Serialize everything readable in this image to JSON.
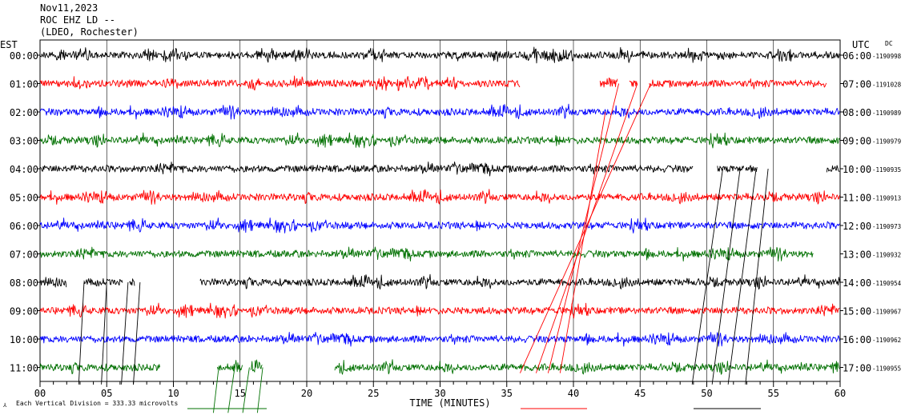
{
  "header": {
    "date": "Nov11,2023",
    "station": "ROC EHZ LD --",
    "location": "(LDEO, Rochester)"
  },
  "chart_data": {
    "type": "line",
    "title": "Nov11,2023 ROC EHZ LD -- (LDEO, Rochester)",
    "left_axis_title": "EST",
    "right_axis_title": "UTC",
    "dc_label": "DC",
    "xlabel": "TIME (MINUTES)",
    "xlim": [
      0,
      60
    ],
    "x_ticks": [
      "00",
      "05",
      "10",
      "15",
      "20",
      "25",
      "30",
      "35",
      "40",
      "45",
      "50",
      "55",
      "60"
    ],
    "grid": true,
    "scale_note": "Each Vertical Division = 333.33 microvolts",
    "trace_colors": [
      "#000000",
      "#ff0000",
      "#0000ff",
      "#007000"
    ],
    "rows": [
      {
        "est": "00:00",
        "utc": "06:00",
        "dc": "-1190998",
        "color": "#000000",
        "segments": [
          [
            0,
            60
          ]
        ]
      },
      {
        "est": "01:00",
        "utc": "07:00",
        "dc": "-1191028",
        "color": "#ff0000",
        "segments": [
          [
            0,
            36
          ],
          [
            42,
            43.3
          ],
          [
            44.2,
            44.8
          ],
          [
            45.7,
            59
          ]
        ]
      },
      {
        "est": "02:00",
        "utc": "08:00",
        "dc": "-1190989",
        "color": "#0000ff",
        "segments": [
          [
            0,
            60
          ]
        ]
      },
      {
        "est": "03:00",
        "utc": "09:00",
        "dc": "-1190979",
        "color": "#007000",
        "segments": [
          [
            0,
            60
          ]
        ]
      },
      {
        "est": "04:00",
        "utc": "10:00",
        "dc": "-1190935",
        "color": "#000000",
        "segments": [
          [
            0,
            49
          ],
          [
            50.8,
            52.8
          ],
          [
            52.9,
            53.8
          ],
          [
            59,
            60
          ]
        ]
      },
      {
        "est": "05:00",
        "utc": "11:00",
        "dc": "-1190913",
        "color": "#ff0000",
        "segments": [
          [
            0,
            60
          ]
        ]
      },
      {
        "est": "06:00",
        "utc": "12:00",
        "dc": "-1190973",
        "color": "#0000ff",
        "segments": [
          [
            0,
            60
          ]
        ]
      },
      {
        "est": "07:00",
        "utc": "13:00",
        "dc": "-1190932",
        "color": "#007000",
        "segments": [
          [
            0,
            58
          ]
        ]
      },
      {
        "est": "08:00",
        "utc": "14:00",
        "dc": "-1190954",
        "color": "#000000",
        "segments": [
          [
            0,
            2
          ],
          [
            3.3,
            6.2
          ],
          [
            6.7,
            7.1
          ],
          [
            12,
            60
          ]
        ]
      },
      {
        "est": "09:00",
        "utc": "15:00",
        "dc": "-1190967",
        "color": "#ff0000",
        "segments": [
          [
            0,
            60
          ]
        ]
      },
      {
        "est": "10:00",
        "utc": "16:00",
        "dc": "-1190962",
        "color": "#0000ff",
        "segments": [
          [
            0,
            60
          ]
        ]
      },
      {
        "est": "11:00",
        "utc": "17:00",
        "dc": "-1190955",
        "color": "#007000",
        "segments": [
          [
            0,
            9
          ],
          [
            13.3,
            15.2
          ],
          [
            15.8,
            16.7
          ],
          [
            22.1,
            60
          ]
        ]
      }
    ],
    "streaks": [
      {
        "color": "#ff0000",
        "x_start": 36.0,
        "row_start": 11.2,
        "x_end": 45.8,
        "row_end": 1.0
      },
      {
        "color": "#ff0000",
        "x_start": 37.2,
        "row_start": 11.2,
        "x_end": 44.8,
        "row_end": 1.0
      },
      {
        "color": "#ff0000",
        "x_start": 38.1,
        "row_start": 11.2,
        "x_end": 43.4,
        "row_end": 1.0
      },
      {
        "color": "#ff0000",
        "x_start": 39.0,
        "row_start": 11.2,
        "x_end": 42.4,
        "row_end": 2.0
      },
      {
        "color": "#000000",
        "x_start": 48.9,
        "row_start": 11.6,
        "x_end": 51.2,
        "row_end": 4.0
      },
      {
        "color": "#000000",
        "x_start": 50.4,
        "row_start": 11.6,
        "x_end": 52.5,
        "row_end": 4.0
      },
      {
        "color": "#000000",
        "x_start": 51.6,
        "row_start": 11.6,
        "x_end": 53.7,
        "row_end": 4.0
      },
      {
        "color": "#000000",
        "x_start": 52.9,
        "row_start": 11.6,
        "x_end": 54.6,
        "row_end": 4.0
      },
      {
        "color": "#000000",
        "x_start": 2.9,
        "row_start": 11.6,
        "x_end": 3.3,
        "row_end": 8.0
      },
      {
        "color": "#000000",
        "x_start": 4.6,
        "row_start": 11.6,
        "x_end": 5.0,
        "row_end": 8.0
      },
      {
        "color": "#000000",
        "x_start": 6.1,
        "row_start": 11.6,
        "x_end": 6.6,
        "row_end": 8.0
      },
      {
        "color": "#000000",
        "x_start": 7.0,
        "row_start": 11.6,
        "x_end": 7.5,
        "row_end": 8.0
      },
      {
        "color": "#007000",
        "x_start": 13.0,
        "row_start": 12.6,
        "x_end": 13.4,
        "row_end": 11.0
      },
      {
        "color": "#007000",
        "x_start": 14.1,
        "row_start": 12.6,
        "x_end": 14.6,
        "row_end": 11.0
      },
      {
        "color": "#007000",
        "x_start": 15.2,
        "row_start": 12.6,
        "x_end": 15.7,
        "row_end": 11.0
      },
      {
        "color": "#007000",
        "x_start": 16.3,
        "row_start": 12.6,
        "x_end": 16.7,
        "row_end": 11.0
      }
    ]
  }
}
